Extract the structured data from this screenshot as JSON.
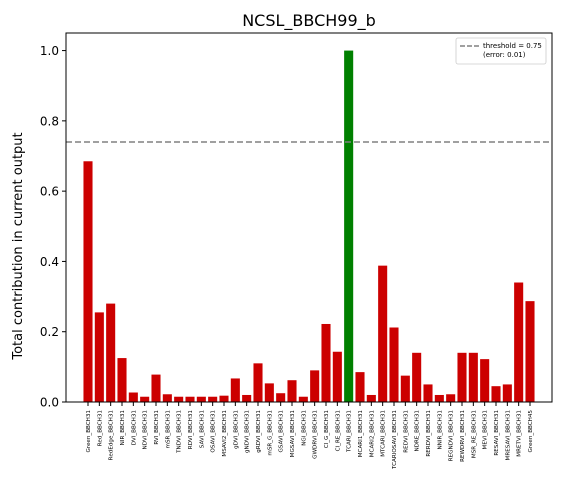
{
  "chart_data": {
    "type": "bar",
    "title": "NCSL_BBCH99_b",
    "xlabel": "",
    "ylabel": "Total contribution in current output",
    "ylim": [
      0,
      1.05
    ],
    "yticks": [
      0.0,
      0.2,
      0.4,
      0.6,
      0.8,
      1.0
    ],
    "ytick_labels": [
      "0.0",
      "0.2",
      "0.4",
      "0.6",
      "0.8",
      "1.0"
    ],
    "grid": false,
    "legend_position": "top-right",
    "threshold": {
      "value": 0.74,
      "label_line1": "threshold = 0.75",
      "label_line2": "(error: 0.01)",
      "color": "#808080"
    },
    "colors": {
      "default": "#cc0000",
      "highlight": "#008000"
    },
    "highlight_category": "TCARI_BBCH31",
    "categories": [
      "Green_BBCH31",
      "Red_BBCH31",
      "RedEdge_BBCH31",
      "NIR_BBCH31",
      "DVI_BBCH31",
      "NDVI_BBCH31",
      "RVI_BBCH31",
      "mSR_BBCH31",
      "TNDVI_BBCH31",
      "RDVI_BBCH31",
      "SAVI_BBCH31",
      "OSAVI_BBCH31",
      "MSAVI2_BBCH31",
      "gDVI_BBCH31",
      "gNDVI_BBCH31",
      "gRDVI_BBCH31",
      "mSR_G_BBCH31",
      "GSAVI_BBCH31",
      "MGSAVI_BBCH31",
      "NGI_BBCH31",
      "GWDRVI_BBCH31",
      "CI_G_BBCH31",
      "CI_RE_BBCH31",
      "TCARI_BBCH31",
      "MCARI1_BBCH31",
      "MCARI2_BBCH31",
      "MTCARI_BBCH31",
      "TCARIOSAVI_BBCH31",
      "REDVI_BBCH31",
      "NDRE_BBCH31",
      "RERDVI_BBCH31",
      "NNIR_BBCH31",
      "REGNDVI_BBCH31",
      "REWDRVI_BBCH31",
      "MSR_RE_BBCH31",
      "MEVI_BBCH31",
      "RESAVI_BBCH31",
      "MRESAVI_BBCH31",
      "MRETVI_BBCH31",
      "Green_BBCH45"
    ],
    "values": [
      0.685,
      0.255,
      0.28,
      0.125,
      0.027,
      0.015,
      0.078,
      0.022,
      0.015,
      0.015,
      0.015,
      0.015,
      0.018,
      0.067,
      0.02,
      0.11,
      0.053,
      0.025,
      0.062,
      0.015,
      0.09,
      0.222,
      0.143,
      1.0,
      0.085,
      0.02,
      0.388,
      0.212,
      0.075,
      0.14,
      0.05,
      0.02,
      0.022,
      0.14,
      0.14,
      0.122,
      0.045,
      0.05,
      0.34,
      0.287
    ]
  }
}
